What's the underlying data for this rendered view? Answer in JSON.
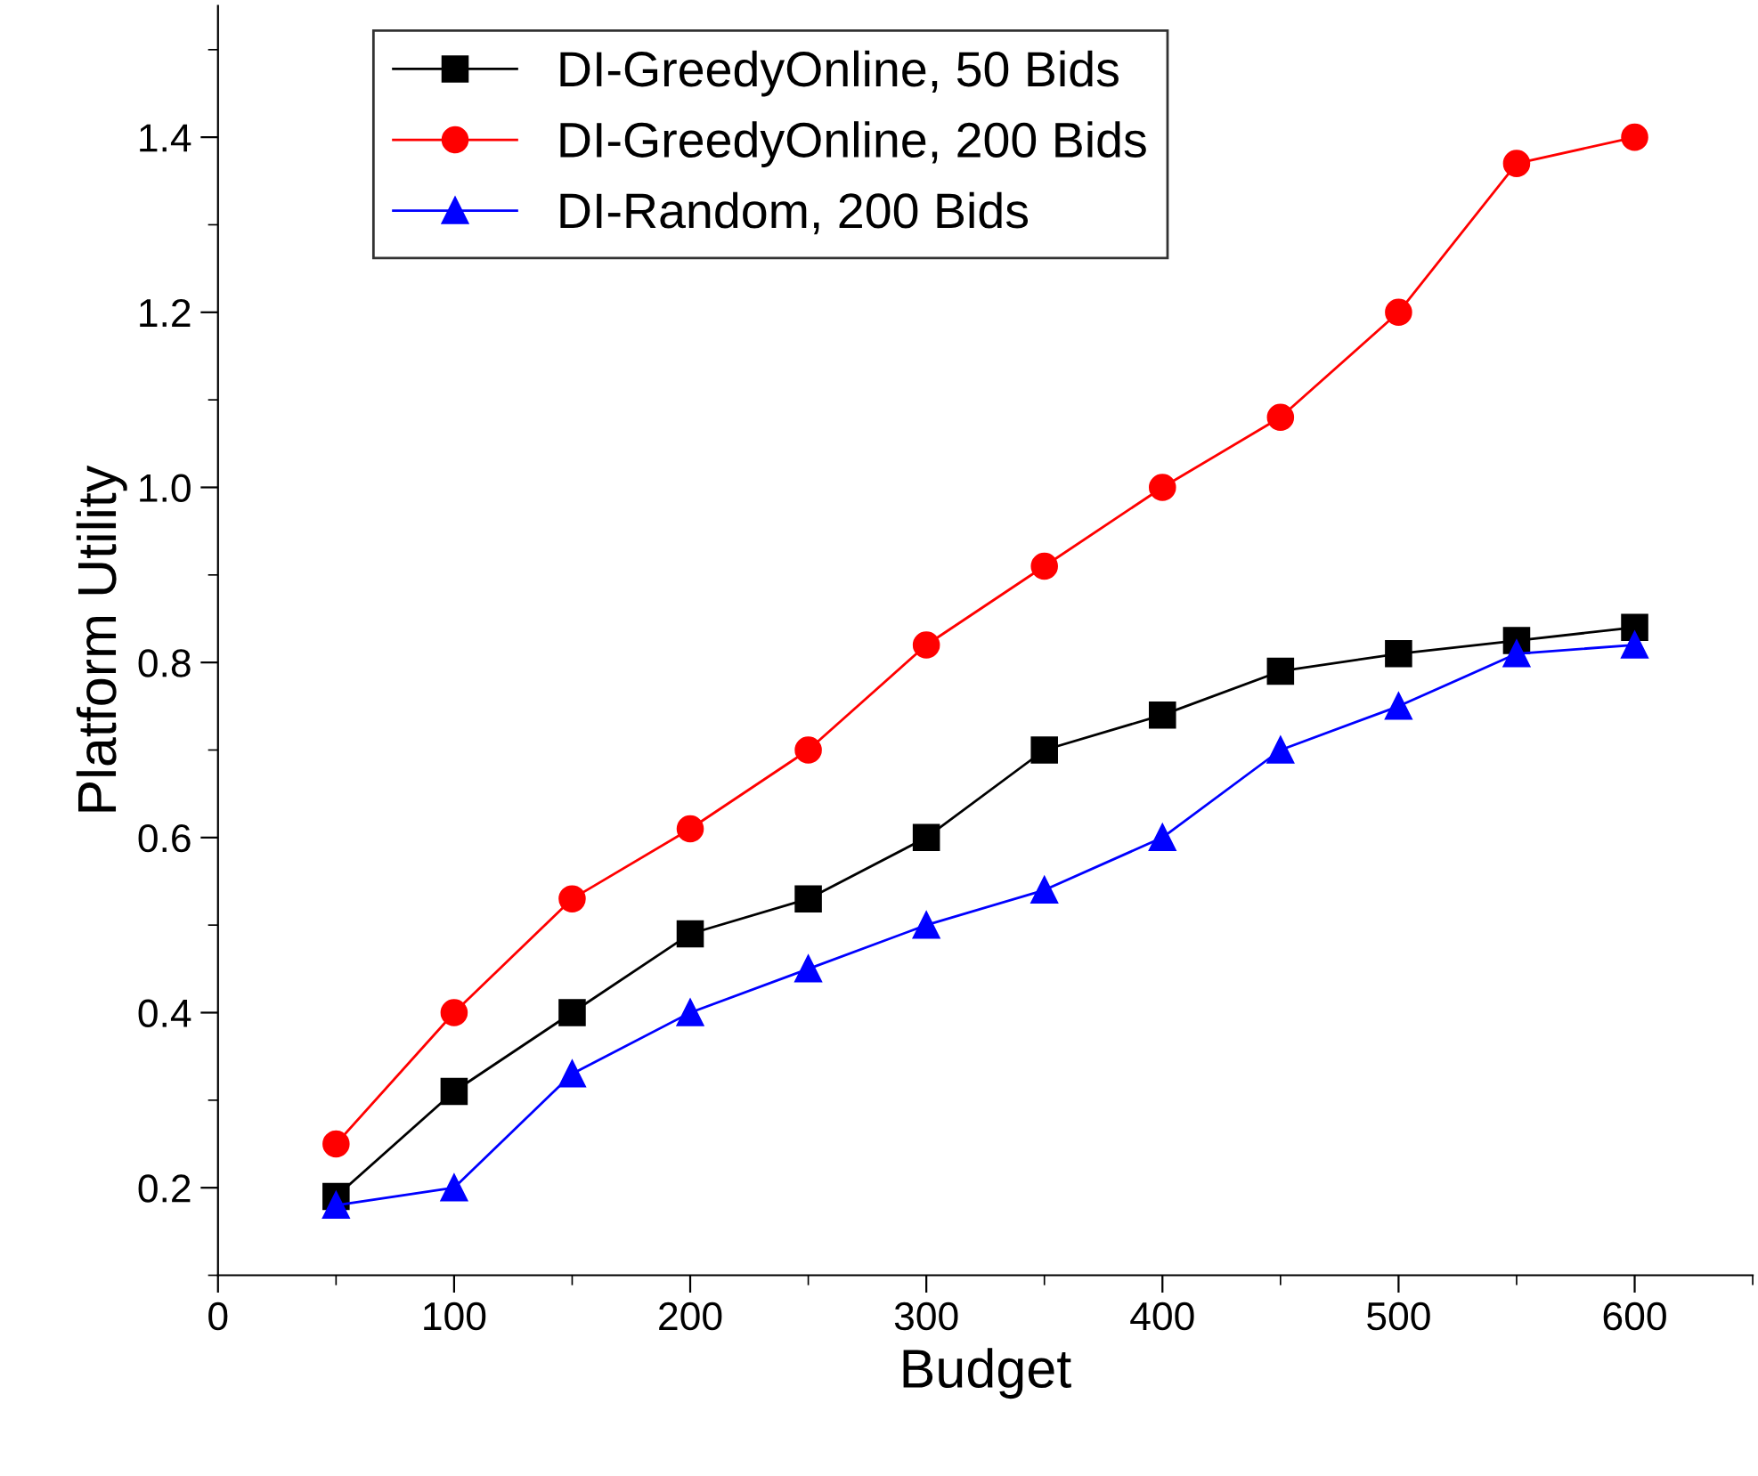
{
  "chart_data": {
    "type": "line",
    "xlabel": "Budget",
    "ylabel": "Platform Utility",
    "x": [
      50,
      100,
      150,
      200,
      250,
      300,
      350,
      400,
      450,
      500,
      550,
      600
    ],
    "series": [
      {
        "name": "DI-GreedyOnline, 50 Bids",
        "color": "#000000",
        "marker": "square",
        "values": [
          0.19,
          0.31,
          0.4,
          0.49,
          0.53,
          0.6,
          0.7,
          0.74,
          0.79,
          0.81,
          0.825,
          0.84
        ]
      },
      {
        "name": "DI-GreedyOnline, 200 Bids",
        "color": "#ff0000",
        "marker": "circle",
        "values": [
          0.25,
          0.4,
          0.53,
          0.61,
          0.7,
          0.82,
          0.91,
          1.0,
          1.08,
          1.2,
          1.37,
          1.4
        ]
      },
      {
        "name": "DI-Random, 200 Bids",
        "color": "#0000ff",
        "marker": "triangle",
        "values": [
          0.18,
          0.2,
          0.33,
          0.4,
          0.45,
          0.5,
          0.54,
          0.6,
          0.7,
          0.75,
          0.81,
          0.82
        ]
      }
    ],
    "xlim": [
      0,
      650
    ],
    "xticks": [
      0,
      100,
      200,
      300,
      400,
      500,
      600
    ],
    "ylim": [
      0.1,
      1.55
    ],
    "yticks": [
      {
        "value": 0.2,
        "label": "0.2"
      },
      {
        "value": 0.4,
        "label": "0.4"
      },
      {
        "value": 0.6,
        "label": "0.6"
      },
      {
        "value": 0.8,
        "label": "0.8"
      },
      {
        "value": 1.0,
        "label": "1.0"
      },
      {
        "value": 1.2,
        "label": "1.2"
      },
      {
        "value": 1.4,
        "label": "1.4"
      }
    ],
    "grid": false,
    "legend": "top",
    "line_style": "solid"
  }
}
